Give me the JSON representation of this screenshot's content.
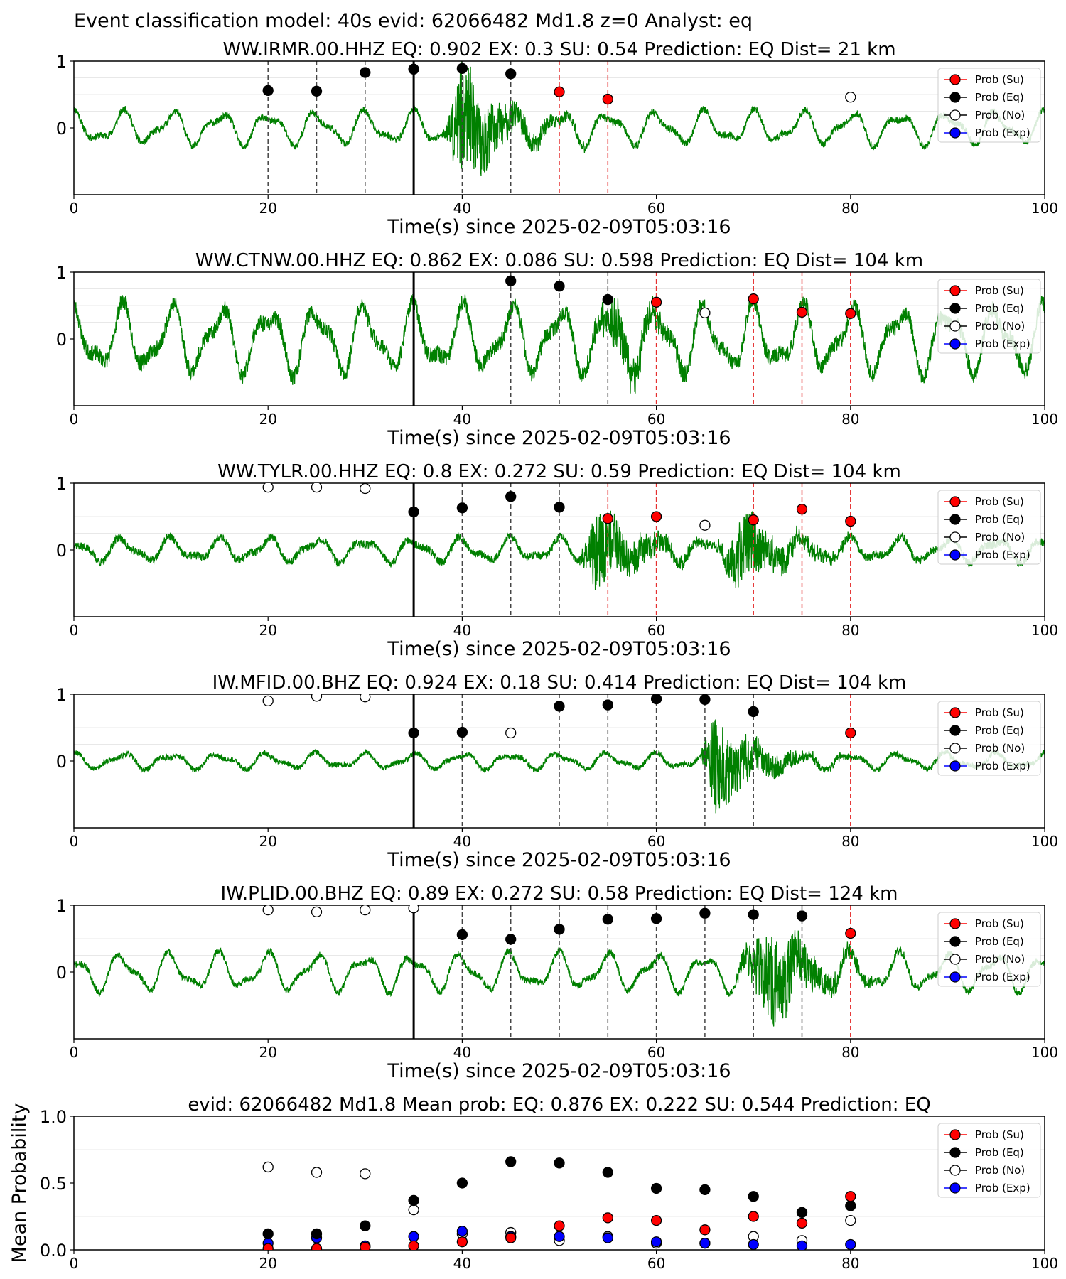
{
  "figure": {
    "title": "Event classification model: 40s evid: 62066482 Md1.8 z=0 Analyst: eq"
  },
  "legend_entries": [
    {
      "label": "Prob (Su)",
      "color": "#ff0000",
      "fill": "#ff0000"
    },
    {
      "label": "Prob (Eq)",
      "color": "#000000",
      "fill": "#000000"
    },
    {
      "label": "Prob (No)",
      "color": "#000000",
      "fill": "#ffffff"
    },
    {
      "label": "Prob (Exp)",
      "color": "#0000ff",
      "fill": "#0000ff"
    }
  ],
  "colors": {
    "waveform": "#008000",
    "su": "#ff0000",
    "eq": "#000000",
    "no": "#ffffff",
    "exp": "#0000ff"
  },
  "chart_data": [
    {
      "type": "scatter",
      "title": "WW.IRMR.00.HHZ   EQ: 0.902  EX: 0.3  SU: 0.54   Prediction: EQ    Dist= 21 km",
      "xlabel": "Time(s) since 2025-02-09T05:03:16",
      "xlim": [
        0,
        100
      ],
      "xticks": [
        0,
        20,
        40,
        60,
        80,
        100
      ],
      "ylim": [
        -1,
        1
      ],
      "yticks": [
        0,
        1
      ],
      "p_arrival": 35,
      "eq_points": [
        [
          20,
          0.56
        ],
        [
          25,
          0.55
        ],
        [
          30,
          0.83
        ],
        [
          35,
          0.88
        ],
        [
          40,
          0.89
        ],
        [
          45,
          0.81
        ]
      ],
      "su_points": [
        [
          50,
          0.54
        ],
        [
          55,
          0.43
        ]
      ],
      "no_points": [
        [
          80,
          0.46
        ]
      ],
      "exp_points": [],
      "waveform": {
        "seed": 11,
        "bg_amp": 0.25,
        "burst_start": 38,
        "burst_peak": 40,
        "burst_amp": 0.9,
        "noise": 0.05
      }
    },
    {
      "type": "scatter",
      "title": "WW.CTNW.00.HHZ   EQ: 0.862  EX: 0.086  SU: 0.598   Prediction: EQ    Dist= 104 km",
      "xlabel": "Time(s) since 2025-02-09T05:03:16",
      "xlim": [
        0,
        100
      ],
      "xticks": [
        0,
        20,
        40,
        60,
        80,
        100
      ],
      "ylim": [
        -1,
        1
      ],
      "yticks": [
        0,
        1
      ],
      "p_arrival": 35,
      "eq_points": [
        [
          45,
          0.87
        ],
        [
          50,
          0.79
        ],
        [
          55,
          0.59
        ]
      ],
      "su_points": [
        [
          60,
          0.55
        ],
        [
          70,
          0.6
        ],
        [
          75,
          0.4
        ],
        [
          80,
          0.38
        ]
      ],
      "no_points": [
        [
          65,
          0.39
        ]
      ],
      "exp_points": [],
      "waveform": {
        "seed": 23,
        "bg_amp": 0.5,
        "burst_start": 52,
        "burst_peak": 56,
        "burst_amp": 0.35,
        "noise": 0.12
      }
    },
    {
      "type": "scatter",
      "title": "WW.TYLR.00.HHZ   EQ: 0.8  EX: 0.272  SU: 0.59   Prediction: EQ    Dist= 104 km",
      "xlabel": "Time(s) since 2025-02-09T05:03:16",
      "xlim": [
        0,
        100
      ],
      "xticks": [
        0,
        20,
        40,
        60,
        80,
        100
      ],
      "ylim": [
        -1,
        1
      ],
      "yticks": [
        0,
        1
      ],
      "p_arrival": 35,
      "eq_points": [
        [
          35,
          0.57
        ],
        [
          40,
          0.63
        ],
        [
          45,
          0.8
        ],
        [
          50,
          0.64
        ]
      ],
      "su_points": [
        [
          55,
          0.47
        ],
        [
          60,
          0.5
        ],
        [
          70,
          0.45
        ],
        [
          75,
          0.61
        ],
        [
          80,
          0.43
        ]
      ],
      "no_points": [
        [
          20,
          0.94
        ],
        [
          25,
          0.94
        ],
        [
          30,
          0.92
        ],
        [
          65,
          0.37
        ]
      ],
      "exp_points": [],
      "waveform": {
        "seed": 37,
        "bg_amp": 0.18,
        "burst_start": 52,
        "burst_peak": 54,
        "burst_amp": 0.65,
        "noise": 0.06,
        "burst2_start": 66,
        "burst2_peak": 69,
        "burst2_amp": 0.55
      }
    },
    {
      "type": "scatter",
      "title": "IW.MFID.00.BHZ   EQ: 0.924  EX: 0.18  SU: 0.414   Prediction: EQ    Dist= 104 km",
      "xlabel": "Time(s) since 2025-02-09T05:03:16",
      "xlim": [
        0,
        100
      ],
      "xticks": [
        0,
        20,
        40,
        60,
        80,
        100
      ],
      "ylim": [
        -1,
        1
      ],
      "yticks": [
        0,
        1
      ],
      "p_arrival": 35,
      "eq_points": [
        [
          35,
          0.42
        ],
        [
          40,
          0.43
        ],
        [
          50,
          0.82
        ],
        [
          55,
          0.84
        ],
        [
          60,
          0.93
        ],
        [
          65,
          0.92
        ],
        [
          70,
          0.74
        ]
      ],
      "su_points": [
        [
          80,
          0.42
        ]
      ],
      "no_points": [
        [
          20,
          0.9
        ],
        [
          25,
          0.97
        ],
        [
          30,
          0.96
        ],
        [
          45,
          0.42
        ]
      ],
      "exp_points": [],
      "waveform": {
        "seed": 53,
        "bg_amp": 0.12,
        "burst_start": 64.5,
        "burst_peak": 66,
        "burst_amp": 0.8,
        "noise": 0.04
      }
    },
    {
      "type": "scatter",
      "title": "IW.PLID.00.BHZ   EQ: 0.89  EX: 0.272  SU: 0.58   Prediction: EQ    Dist= 124 km",
      "xlabel": "Time(s) since 2025-02-09T05:03:16",
      "xlim": [
        0,
        100
      ],
      "xticks": [
        0,
        20,
        40,
        60,
        80,
        100
      ],
      "ylim": [
        -1,
        1
      ],
      "yticks": [
        0,
        1
      ],
      "p_arrival": 35,
      "eq_points": [
        [
          40,
          0.56
        ],
        [
          45,
          0.49
        ],
        [
          50,
          0.64
        ],
        [
          55,
          0.79
        ],
        [
          60,
          0.8
        ],
        [
          65,
          0.88
        ],
        [
          70,
          0.86
        ],
        [
          75,
          0.84
        ]
      ],
      "su_points": [
        [
          80,
          0.58
        ]
      ],
      "no_points": [
        [
          20,
          0.93
        ],
        [
          25,
          0.9
        ],
        [
          30,
          0.93
        ],
        [
          35,
          0.96
        ]
      ],
      "exp_points": [],
      "waveform": {
        "seed": 71,
        "bg_amp": 0.28,
        "burst_start": 68,
        "burst_peak": 72,
        "burst_amp": 0.75,
        "noise": 0.05
      }
    },
    {
      "type": "scatter",
      "title": "evid: 62066482  Md1.8   Mean prob:   EQ: 0.876  EX: 0.222  SU: 0.544   Prediction: EQ",
      "ylabel": "Mean Probability",
      "xlim": [
        0,
        100
      ],
      "xticks": [
        0,
        20,
        40,
        60,
        80,
        100
      ],
      "ylim": [
        0,
        1
      ],
      "yticks": [
        0.0,
        0.5,
        1.0
      ],
      "ytick_labels": [
        "0.0",
        "0.5",
        "1.0"
      ],
      "eq_points": [
        [
          20,
          0.12
        ],
        [
          25,
          0.12
        ],
        [
          30,
          0.18
        ],
        [
          35,
          0.37
        ],
        [
          40,
          0.5
        ],
        [
          45,
          0.66
        ],
        [
          50,
          0.65
        ],
        [
          55,
          0.58
        ],
        [
          60,
          0.46
        ],
        [
          65,
          0.45
        ],
        [
          70,
          0.4
        ],
        [
          75,
          0.28
        ],
        [
          80,
          0.33
        ]
      ],
      "su_points": [
        [
          20,
          0.01
        ],
        [
          25,
          0.01
        ],
        [
          30,
          0.02
        ],
        [
          35,
          0.03
        ],
        [
          40,
          0.06
        ],
        [
          45,
          0.09
        ],
        [
          50,
          0.18
        ],
        [
          55,
          0.24
        ],
        [
          60,
          0.22
        ],
        [
          65,
          0.15
        ],
        [
          70,
          0.25
        ],
        [
          75,
          0.2
        ],
        [
          80,
          0.4
        ]
      ],
      "no_points": [
        [
          20,
          0.62
        ],
        [
          25,
          0.58
        ],
        [
          30,
          0.57
        ],
        [
          35,
          0.3
        ],
        [
          40,
          0.12
        ],
        [
          45,
          0.13
        ],
        [
          50,
          0.07
        ],
        [
          55,
          0.1
        ],
        [
          60,
          0.05
        ],
        [
          65,
          0.05
        ],
        [
          70,
          0.1
        ],
        [
          75,
          0.07
        ],
        [
          80,
          0.22
        ]
      ],
      "exp_points": [
        [
          20,
          0.05
        ],
        [
          25,
          0.09
        ],
        [
          30,
          0.03
        ],
        [
          35,
          0.1
        ],
        [
          40,
          0.14
        ],
        [
          45,
          0.1
        ],
        [
          50,
          0.1
        ],
        [
          55,
          0.09
        ],
        [
          60,
          0.06
        ],
        [
          65,
          0.05
        ],
        [
          70,
          0.04
        ],
        [
          75,
          0.03
        ],
        [
          80,
          0.04
        ]
      ]
    }
  ]
}
